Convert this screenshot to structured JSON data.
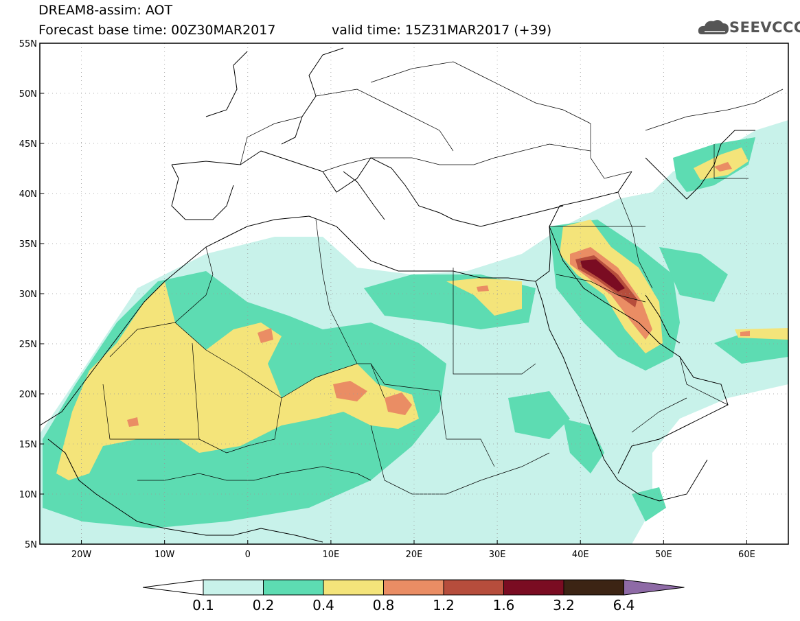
{
  "header": {
    "title_line1": "DREAM8-assim: AOT",
    "title_line2": "Forecast base time: 00Z30MAR2017",
    "valid_time": "valid time: 15Z31MAR2017 (+39)",
    "logo_text": "SEEVCCC"
  },
  "map": {
    "lat_labels": [
      "55N",
      "50N",
      "45N",
      "40N",
      "35N",
      "30N",
      "25N",
      "20N",
      "15N",
      "10N",
      "5N"
    ],
    "lon_labels": [
      "20W",
      "10W",
      "0",
      "10E",
      "20E",
      "30E",
      "40E",
      "50E",
      "60E"
    ],
    "lat_range": [
      5,
      55
    ],
    "lon_range": [
      -25,
      65
    ]
  },
  "colorbar": {
    "labels": [
      "0.1",
      "0.2",
      "0.4",
      "0.8",
      "1.2",
      "1.6",
      "3.2",
      "6.4"
    ],
    "colors": [
      "#c8f2ea",
      "#5ddcb2",
      "#f4e47a",
      "#ea8d64",
      "#b64d3c",
      "#7a0c22",
      "#3c2414",
      "#8e6aa6"
    ]
  }
}
